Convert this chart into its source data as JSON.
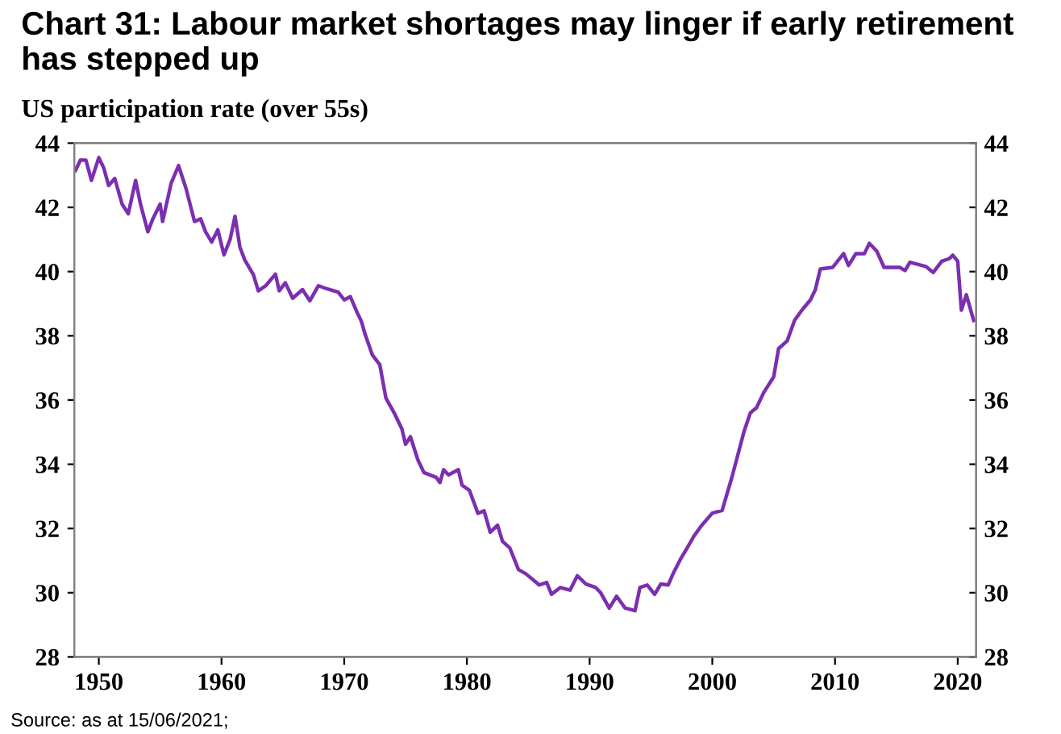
{
  "chart_data": {
    "type": "line",
    "title": "Chart 31: Labour market shortages may linger if early retirement has stepped up",
    "subtitle": "US participation rate (over 55s)",
    "annotations": [
      "Source: as at 15/06/2021;"
    ],
    "xlim": [
      1948,
      2021.5
    ],
    "xticks": [
      1950,
      1960,
      1970,
      1980,
      1990,
      2000,
      2010,
      2020
    ],
    "ylim": [
      28,
      44
    ],
    "yticks": [
      28,
      30,
      32,
      34,
      36,
      38,
      40,
      42,
      44
    ],
    "y2lim": [
      28,
      44
    ],
    "y2ticks": [
      28,
      30,
      32,
      34,
      36,
      38,
      40,
      42,
      44
    ],
    "series": [
      {
        "color": "#7b2fb0",
        "x": [
          1948.1,
          1948.5,
          1948.95,
          1949.4,
          1950,
          1950.4,
          1950.8,
          1951.3,
          1951.9,
          1952.4,
          1953,
          1953.4,
          1954,
          1954.4,
          1955,
          1955.2,
          1955.9,
          1956.5,
          1957.1,
          1957.8,
          1958.3,
          1958.7,
          1959.2,
          1959.7,
          1960.2,
          1960.7,
          1961.1,
          1961.5,
          1961.9,
          1962.6,
          1963,
          1963.6,
          1964.4,
          1964.7,
          1965.2,
          1965.8,
          1966.6,
          1967.2,
          1967.9,
          1968.4,
          1969.5,
          1970,
          1970.5,
          1971,
          1971.4,
          1971.7,
          1972.3,
          1972.9,
          1973.4,
          1974.1,
          1974.7,
          1975,
          1975.4,
          1976,
          1976.5,
          1977.5,
          1977.8,
          1978.1,
          1978.5,
          1979.3,
          1979.6,
          1980.2,
          1980.9,
          1981.4,
          1981.9,
          1982.5,
          1982.9,
          1983.5,
          1984.2,
          1984.8,
          1985.9,
          1986.5,
          1986.9,
          1987.6,
          1988.4,
          1989,
          1989.7,
          1990.5,
          1990.9,
          1991.6,
          1992.2,
          1992.9,
          1993.7,
          1994.1,
          1994.7,
          1995.3,
          1995.8,
          1996.4,
          1996.8,
          1997.4,
          1997.9,
          1998.5,
          1999.1,
          2000,
          2000.8,
          2001.6,
          2002.6,
          2003.1,
          2003.6,
          2004.2,
          2005,
          2005.4,
          2006.1,
          2006.7,
          2007.3,
          2008,
          2008.4,
          2008.8,
          2009.8,
          2010.7,
          2011.1,
          2011.7,
          2012.4,
          2012.8,
          2013.4,
          2014,
          2015.3,
          2015.7,
          2016.1,
          2017.4,
          2018,
          2018.7,
          2019.3,
          2019.6,
          2020,
          2020.3,
          2020.7,
          2021.3
        ],
        "values": [
          43.15,
          43.47,
          43.47,
          42.84,
          43.55,
          43.23,
          42.68,
          42.9,
          42.1,
          41.8,
          42.84,
          42.1,
          41.24,
          41.64,
          42.1,
          41.56,
          42.76,
          43.3,
          42.6,
          41.56,
          41.64,
          41.24,
          40.92,
          41.3,
          40.52,
          41.0,
          41.72,
          40.76,
          40.36,
          39.9,
          39.4,
          39.56,
          39.92,
          39.4,
          39.65,
          39.17,
          39.44,
          39.09,
          39.56,
          39.49,
          39.36,
          39.12,
          39.22,
          38.77,
          38.45,
          38.05,
          37.4,
          37.1,
          36.06,
          35.58,
          35.1,
          34.62,
          34.86,
          34.14,
          33.74,
          33.59,
          33.43,
          33.83,
          33.67,
          33.83,
          33.35,
          33.19,
          32.47,
          32.55,
          31.88,
          32.1,
          31.6,
          31.39,
          30.72,
          30.59,
          30.24,
          30.32,
          29.95,
          30.16,
          30.08,
          30.53,
          30.27,
          30.16,
          30.0,
          29.52,
          29.89,
          29.52,
          29.44,
          30.16,
          30.24,
          29.95,
          30.27,
          30.24,
          30.59,
          31.04,
          31.36,
          31.76,
          32.08,
          32.48,
          32.56,
          33.6,
          35.04,
          35.6,
          35.76,
          36.24,
          36.72,
          37.6,
          37.84,
          38.48,
          38.8,
          39.12,
          39.44,
          40.08,
          40.13,
          40.56,
          40.19,
          40.56,
          40.56,
          40.88,
          40.64,
          40.13,
          40.13,
          40.03,
          40.29,
          40.16,
          39.97,
          40.32,
          40.4,
          40.51,
          40.32,
          38.8,
          39.28,
          38.48
        ]
      }
    ]
  }
}
